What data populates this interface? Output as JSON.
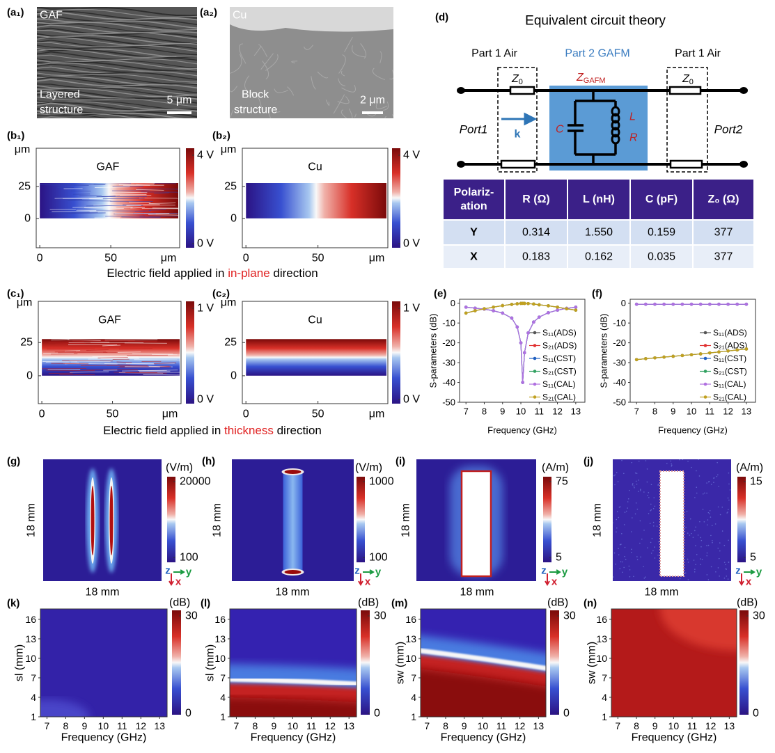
{
  "a1": {
    "label": "(a₁)",
    "material": "GAF",
    "caption": [
      "Layered",
      "structure"
    ],
    "scale_bar": "5 μm"
  },
  "a2": {
    "label": "(a₂)",
    "material": "Cu",
    "caption": [
      "Block",
      "structure"
    ],
    "scale_bar": "2 μm"
  },
  "b1": {
    "label": "(b₁)",
    "title": "GAF",
    "y_unit": "μm",
    "x_unit": "μm",
    "xlim": [
      -2.5,
      98.5
    ],
    "ylim": [
      -23,
      55
    ],
    "xticks": [
      0,
      50
    ],
    "yticks": [
      25,
      0
    ],
    "colorbar": [
      {
        "value": 4,
        "label": "4 V"
      },
      {
        "value": 0,
        "label": "0 V"
      }
    ]
  },
  "b2": {
    "label": "(b₂)",
    "title": "Cu",
    "y_unit": "μm",
    "x_unit": "μm",
    "xlim": [
      -2.5,
      98.5
    ],
    "ylim": [
      -23,
      55
    ],
    "xticks": [
      0,
      50
    ],
    "yticks": [
      25,
      0
    ],
    "colorbar": [
      {
        "value": 4,
        "label": "4 V"
      },
      {
        "value": 0,
        "label": "0 V"
      }
    ]
  },
  "b_caption": [
    "Electric field applied in ",
    "in-plane",
    " direction"
  ],
  "c1": {
    "label": "(c₁)",
    "title": "GAF",
    "y_unit": "μm",
    "x_unit": "μm",
    "xlim": [
      -2.5,
      98.5
    ],
    "ylim": [
      -21,
      56
    ],
    "xticks": [
      0,
      50
    ],
    "yticks": [
      25,
      0
    ],
    "colorbar": [
      {
        "value": 1,
        "label": "1 V"
      },
      {
        "value": 0,
        "label": "0 V"
      }
    ]
  },
  "c2": {
    "label": "(c₂)",
    "title": "Cu",
    "y_unit": "μm",
    "x_unit": "μm",
    "xlim": [
      -2.5,
      98.5
    ],
    "ylim": [
      -21,
      56
    ],
    "xticks": [
      0,
      50
    ],
    "yticks": [
      25,
      0
    ],
    "colorbar": [
      {
        "value": 1,
        "label": "1 V"
      },
      {
        "value": 0,
        "label": "0 V"
      }
    ]
  },
  "c_caption": [
    "Electric field applied in ",
    "thickness",
    " direction"
  ],
  "d": {
    "label": "(d)",
    "title": "Equivalent circuit theory",
    "part_left": "Part 1 Air",
    "part_middle": "Part 2 GAFM",
    "part_right": "Part 1 Air",
    "z_left": [
      "Z",
      "0"
    ],
    "z_gafm": [
      "Z",
      "GAFM"
    ],
    "z_right": [
      "Z",
      "0"
    ],
    "capacitor": "C",
    "inductor": "L",
    "resistor": "R",
    "wave": "k",
    "port_left": "Port1",
    "port_right": "Port2"
  },
  "table": {
    "header": [
      [
        "Polariz-",
        "ation"
      ],
      "R (Ω)",
      "L (nH)",
      "C (pF)",
      "Z₀ (Ω)"
    ],
    "rows": [
      [
        "Y",
        "0.314",
        "1.550",
        "0.159",
        "377"
      ],
      [
        "X",
        "0.183",
        "0.162",
        "0.035",
        "377"
      ]
    ]
  },
  "chart_data": [
    {
      "type": "line",
      "panel_label": "(e)",
      "xlabel": "Frequency (GHz)",
      "ylabel": "S-parameters (dB)",
      "xlim": [
        6.65,
        13.5
      ],
      "ylim": [
        -50,
        2
      ],
      "xticks": [
        7,
        8,
        9,
        10,
        11,
        12,
        13
      ],
      "yticks": [
        0,
        -10,
        -20,
        -30,
        -40,
        -50
      ],
      "x": [
        7,
        7.5,
        8,
        8.5,
        9,
        9.5,
        9.8,
        10,
        10.1,
        10.2,
        10.4,
        10.7,
        11,
        11.5,
        12,
        12.5,
        13
      ],
      "series": [
        {
          "name": "S₁₁(ADS)",
          "color": "#555555",
          "values": [
            -2,
            -2.5,
            -3,
            -3.8,
            -5,
            -7.5,
            -12,
            -20,
            -40,
            -25,
            -15,
            -9.5,
            -7,
            -4.8,
            -3.5,
            -2.6,
            -2
          ]
        },
        {
          "name": "S₂₁(ADS)",
          "color": "#e03030",
          "values": [
            -5,
            -3.8,
            -2.8,
            -2,
            -1.2,
            -0.6,
            -0.3,
            -0.1,
            -0.05,
            -0.1,
            -0.2,
            -0.4,
            -0.8,
            -1.3,
            -2,
            -2.8,
            -3.5
          ]
        },
        {
          "name": "S₁₁(CST)",
          "color": "#2060c0",
          "values": [
            -2,
            -2.5,
            -3,
            -3.8,
            -5,
            -7.5,
            -12,
            -20,
            -40,
            -25,
            -15,
            -9.5,
            -7,
            -4.8,
            -3.5,
            -2.6,
            -2
          ]
        },
        {
          "name": "S₂₁(CST)",
          "color": "#30a060",
          "values": [
            -5,
            -3.8,
            -2.8,
            -2,
            -1.2,
            -0.6,
            -0.3,
            -0.1,
            -0.05,
            -0.1,
            -0.2,
            -0.4,
            -0.8,
            -1.3,
            -2,
            -2.8,
            -3.5
          ]
        },
        {
          "name": "S₁₁(CAL)",
          "color": "#b070e0",
          "values": [
            -2,
            -2.5,
            -3,
            -3.8,
            -5,
            -7.5,
            -12,
            -20,
            -40,
            -25,
            -15,
            -9.5,
            -7,
            -4.8,
            -3.5,
            -2.6,
            -2
          ]
        },
        {
          "name": "S₂₁(CAL)",
          "color": "#c0a020",
          "values": [
            -5,
            -3.8,
            -2.8,
            -2,
            -1.2,
            -0.6,
            -0.3,
            -0.1,
            -0.05,
            -0.1,
            -0.2,
            -0.4,
            -0.8,
            -1.3,
            -2,
            -2.8,
            -3.5
          ]
        }
      ]
    },
    {
      "type": "line",
      "panel_label": "(f)",
      "xlabel": "Frequency (GHz)",
      "ylabel": "S-parameters (dB)",
      "xlim": [
        6.65,
        13.5
      ],
      "ylim": [
        -50,
        2
      ],
      "xticks": [
        7,
        8,
        9,
        10,
        11,
        12,
        13
      ],
      "yticks": [
        0,
        -10,
        -20,
        -30,
        -40,
        -50
      ],
      "x": [
        7,
        7.5,
        8,
        8.5,
        9,
        9.5,
        10,
        10.5,
        11,
        11.5,
        12,
        12.5,
        13
      ],
      "series": [
        {
          "name": "S₁₁(ADS)",
          "color": "#555555",
          "values": [
            -0.5,
            -0.5,
            -0.5,
            -0.5,
            -0.5,
            -0.5,
            -0.5,
            -0.5,
            -0.5,
            -0.5,
            -0.5,
            -0.5,
            -0.5
          ]
        },
        {
          "name": "S₂₁(ADS)",
          "color": "#e03030",
          "values": [
            -28.5,
            -28,
            -27.6,
            -27.2,
            -26.8,
            -26.4,
            -26,
            -25.6,
            -25.1,
            -24.6,
            -24.1,
            -23.6,
            -23.1
          ]
        },
        {
          "name": "S₁₁(CST)",
          "color": "#2060c0",
          "values": [
            -0.5,
            -0.5,
            -0.5,
            -0.5,
            -0.5,
            -0.5,
            -0.5,
            -0.5,
            -0.5,
            -0.5,
            -0.5,
            -0.5,
            -0.5
          ]
        },
        {
          "name": "S₂₁(CST)",
          "color": "#30a060",
          "values": [
            -28.5,
            -28,
            -27.6,
            -27.2,
            -26.8,
            -26.4,
            -26,
            -25.6,
            -25.1,
            -24.6,
            -24.1,
            -23.6,
            -23.1
          ]
        },
        {
          "name": "S₁₁(CAL)",
          "color": "#b070e0",
          "values": [
            -0.5,
            -0.5,
            -0.5,
            -0.5,
            -0.5,
            -0.5,
            -0.5,
            -0.5,
            -0.5,
            -0.5,
            -0.5,
            -0.5,
            -0.5
          ]
        },
        {
          "name": "S₂₁(CAL)",
          "color": "#c0a020",
          "values": [
            -28.5,
            -28,
            -27.6,
            -27.2,
            -26.8,
            -26.4,
            -26,
            -25.6,
            -25.1,
            -24.6,
            -24.1,
            -23.6,
            -23.1
          ]
        }
      ]
    }
  ],
  "maps": [
    {
      "label": "(g)",
      "unit": "(V/m)",
      "cbticks": [
        20000,
        100
      ],
      "cblim": [
        100,
        20000
      ],
      "x_label": "18 mm",
      "y_label": "18 mm",
      "axes": [
        "z",
        "y",
        "x"
      ]
    },
    {
      "label": "(h)",
      "unit": "(V/m)",
      "cbticks": [
        1000,
        100
      ],
      "cblim": [
        100,
        1000
      ],
      "x_label": "18 mm",
      "y_label": "18 mm",
      "axes": [
        "z",
        "y",
        "x"
      ]
    },
    {
      "label": "(i)",
      "unit": "(A/m)",
      "cbticks": [
        75,
        5
      ],
      "cblim": [
        5,
        75
      ],
      "x_label": "18 mm",
      "y_label": "18 mm",
      "axes": [
        "z",
        "y",
        "x"
      ]
    },
    {
      "label": "(j)",
      "unit": "(A/m)",
      "cbticks": [
        15,
        5
      ],
      "cblim": [
        5,
        15
      ],
      "x_label": "18 mm",
      "y_label": "18 mm",
      "axes": [
        "z",
        "y",
        "x"
      ]
    }
  ],
  "sweeps": [
    {
      "label": "(k)",
      "ylabel": "sl (mm)",
      "xlabel": "Frequency (GHz)",
      "xlim": [
        6.65,
        13.4
      ],
      "ylim": [
        1,
        17.6
      ],
      "xticks": [
        7,
        8,
        9,
        10,
        11,
        12,
        13
      ],
      "yticks": [
        1,
        4,
        7,
        10,
        13,
        16
      ],
      "cb_unit": "(dB)",
      "cbticks": [
        30,
        0
      ],
      "cblim": [
        0,
        30
      ]
    },
    {
      "label": "(l)",
      "ylabel": "sl (mm)",
      "xlabel": "Frequency (GHz)",
      "xlim": [
        6.65,
        13.4
      ],
      "ylim": [
        1,
        17.6
      ],
      "xticks": [
        7,
        8,
        9,
        10,
        11,
        12,
        13
      ],
      "yticks": [
        1,
        4,
        7,
        10,
        13,
        16
      ],
      "cb_unit": "(dB)",
      "cbticks": [
        30,
        0
      ],
      "cblim": [
        0,
        30
      ]
    },
    {
      "label": "(m)",
      "ylabel": "sw (mm)",
      "xlabel": "Frequency (GHz)",
      "xlim": [
        6.65,
        13.4
      ],
      "ylim": [
        1,
        17.6
      ],
      "xticks": [
        7,
        8,
        9,
        10,
        11,
        12,
        13
      ],
      "yticks": [
        1,
        4,
        7,
        10,
        13,
        16
      ],
      "cb_unit": "(dB)",
      "cbticks": [
        30,
        0
      ],
      "cblim": [
        0,
        30
      ]
    },
    {
      "label": "(n)",
      "ylabel": "sw (mm)",
      "xlabel": "Frequency (GHz)",
      "xlim": [
        6.65,
        13.4
      ],
      "ylim": [
        1,
        17.6
      ],
      "xticks": [
        7,
        8,
        9,
        10,
        11,
        12,
        13
      ],
      "yticks": [
        1,
        4,
        7,
        10,
        13,
        16
      ],
      "cb_unit": "(dB)",
      "cbticks": [
        30,
        0
      ],
      "cblim": [
        0,
        30
      ]
    }
  ]
}
